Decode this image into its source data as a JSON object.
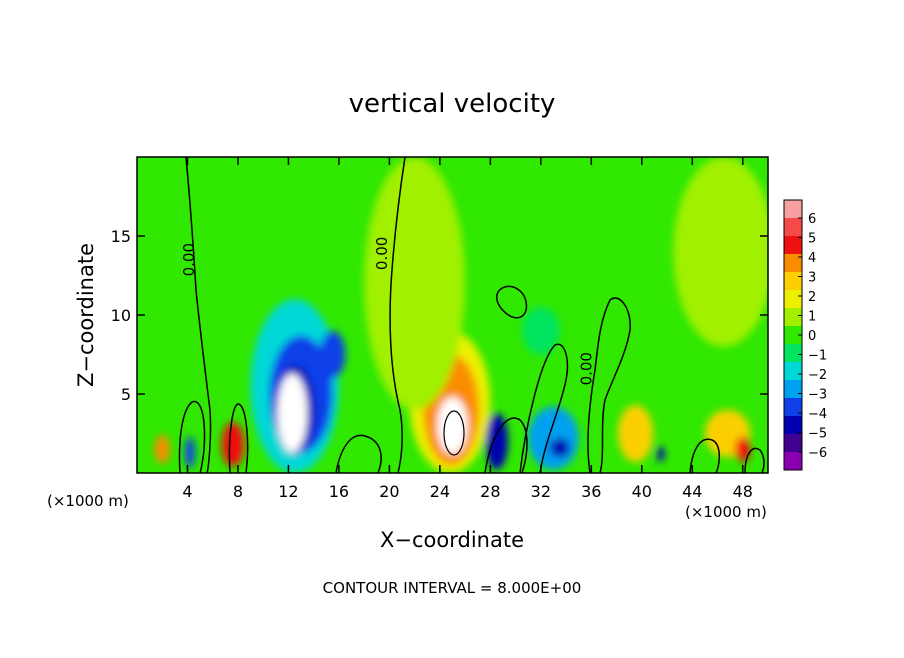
{
  "chart_data": {
    "type": "heatmap",
    "title": "vertical velocity",
    "xlabel": "X−coordinate",
    "ylabel": "Z−coordinate",
    "x_unit_left": "(×1000 m)",
    "x_unit_right": "(×1000 m)",
    "xlim": [
      0,
      50
    ],
    "ylim": [
      0,
      20
    ],
    "xticks": [
      4,
      8,
      12,
      16,
      20,
      24,
      28,
      32,
      36,
      40,
      44,
      48
    ],
    "yticks": [
      5,
      10,
      15
    ],
    "footer": "CONTOUR INTERVAL = 8.000E+00",
    "contour_labels": [
      {
        "text": "0.00",
        "x": 4.5,
        "y": 13.5
      },
      {
        "text": "0.00",
        "x": 19.8,
        "y": 13.9
      },
      {
        "text": "0.00",
        "x": 36.0,
        "y": 6.6
      }
    ],
    "colorbar": {
      "levels": [
        "6",
        "5",
        "4",
        "3",
        "2",
        "1",
        "0",
        "−1",
        "−2",
        "−3",
        "−4",
        "−5",
        "−6"
      ],
      "colors": [
        "#f6a0a0",
        "#f44a4a",
        "#ef1010",
        "#fa8c00",
        "#fcd000",
        "#ecf000",
        "#a0f000",
        "#30e800",
        "#00e460",
        "#00d8d8",
        "#00a0f0",
        "#1040e8",
        "#0000b0",
        "#400090",
        "#8a00b0"
      ]
    },
    "background_value": "0",
    "cells": [
      {
        "x": 2,
        "y": 1.5,
        "rx": 0.6,
        "ry": 0.9,
        "v": 4
      },
      {
        "x": 4.2,
        "y": 1.3,
        "rx": 0.4,
        "ry": 1.0,
        "v": -4
      },
      {
        "x": 7.6,
        "y": 1.8,
        "rx": 0.9,
        "ry": 1.4,
        "v": 5
      },
      {
        "x": 12.5,
        "y": 5.5,
        "rx": 3.5,
        "ry": 5.5,
        "v": -2
      },
      {
        "x": 13.0,
        "y": 5.0,
        "rx": 2.5,
        "ry": 3.7,
        "v": -4
      },
      {
        "x": 12.5,
        "y": 4.0,
        "rx": 1.6,
        "ry": 2.8,
        "v": -5
      },
      {
        "x": 15.5,
        "y": 7.5,
        "rx": 1.0,
        "ry": 1.5,
        "v": -4
      },
      {
        "x": 12.3,
        "y": 3.8,
        "rx": 1.2,
        "ry": 2.5,
        "v": 7
      },
      {
        "x": 24.8,
        "y": 4.5,
        "rx": 3.2,
        "ry": 4.5,
        "v": 2
      },
      {
        "x": 24.9,
        "y": 4.0,
        "rx": 2.2,
        "ry": 3.5,
        "v": 4
      },
      {
        "x": 25.0,
        "y": 3.0,
        "rx": 1.2,
        "ry": 1.8,
        "v": 7
      },
      {
        "x": 28.5,
        "y": 2.0,
        "rx": 0.9,
        "ry": 1.8,
        "v": -5
      },
      {
        "x": 33.0,
        "y": 2.2,
        "rx": 2.0,
        "ry": 2.0,
        "v": -3
      },
      {
        "x": 33.5,
        "y": 1.6,
        "rx": 0.8,
        "ry": 0.6,
        "v": -5
      },
      {
        "x": 39.5,
        "y": 2.5,
        "rx": 1.4,
        "ry": 1.8,
        "v": 3
      },
      {
        "x": 41.5,
        "y": 1.2,
        "rx": 0.3,
        "ry": 0.5,
        "v": -5
      },
      {
        "x": 46.8,
        "y": 2.5,
        "rx": 1.8,
        "ry": 1.5,
        "v": 3
      },
      {
        "x": 48.0,
        "y": 1.5,
        "rx": 0.6,
        "ry": 0.8,
        "v": 5
      },
      {
        "x": 46.5,
        "y": 14.0,
        "rx": 4.0,
        "ry": 6.0,
        "v": 1
      },
      {
        "x": 22.0,
        "y": 12.0,
        "rx": 4.0,
        "ry": 8.0,
        "v": 1
      },
      {
        "x": 32.0,
        "y": 9.0,
        "rx": 1.5,
        "ry": 1.5,
        "v": -1
      }
    ]
  }
}
